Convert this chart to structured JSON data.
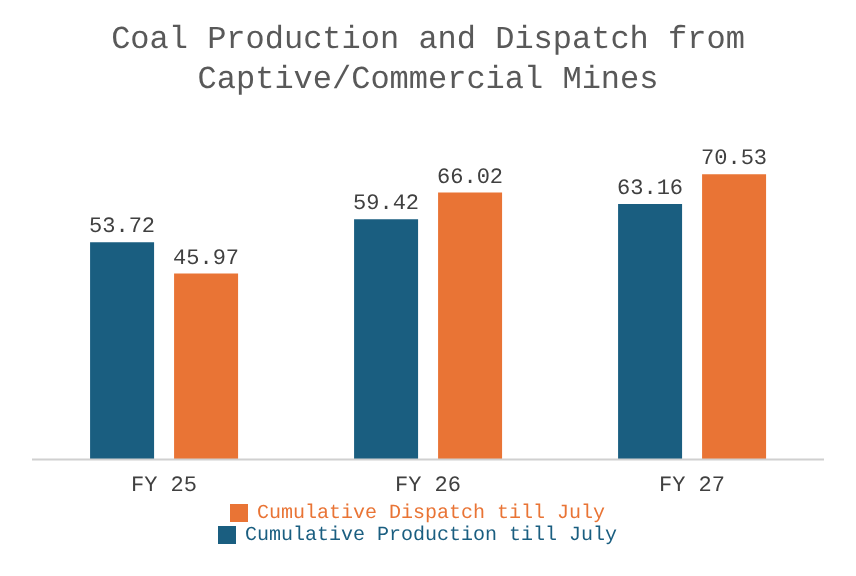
{
  "chart_data": {
    "type": "bar",
    "title": "Coal Production and Dispatch from Captive/Commercial Mines",
    "categories": [
      "FY 25",
      "FY 26",
      "FY 27"
    ],
    "series": [
      {
        "name": "Cumulative Production till July",
        "color": "#1a5e80",
        "values": [
          53.72,
          59.42,
          63.16
        ]
      },
      {
        "name": "Cumulative Dispatch till July",
        "color": "#e97435",
        "values": [
          45.97,
          66.02,
          70.53
        ]
      }
    ],
    "data_labels": true,
    "legend": "bottom",
    "grid": false
  }
}
